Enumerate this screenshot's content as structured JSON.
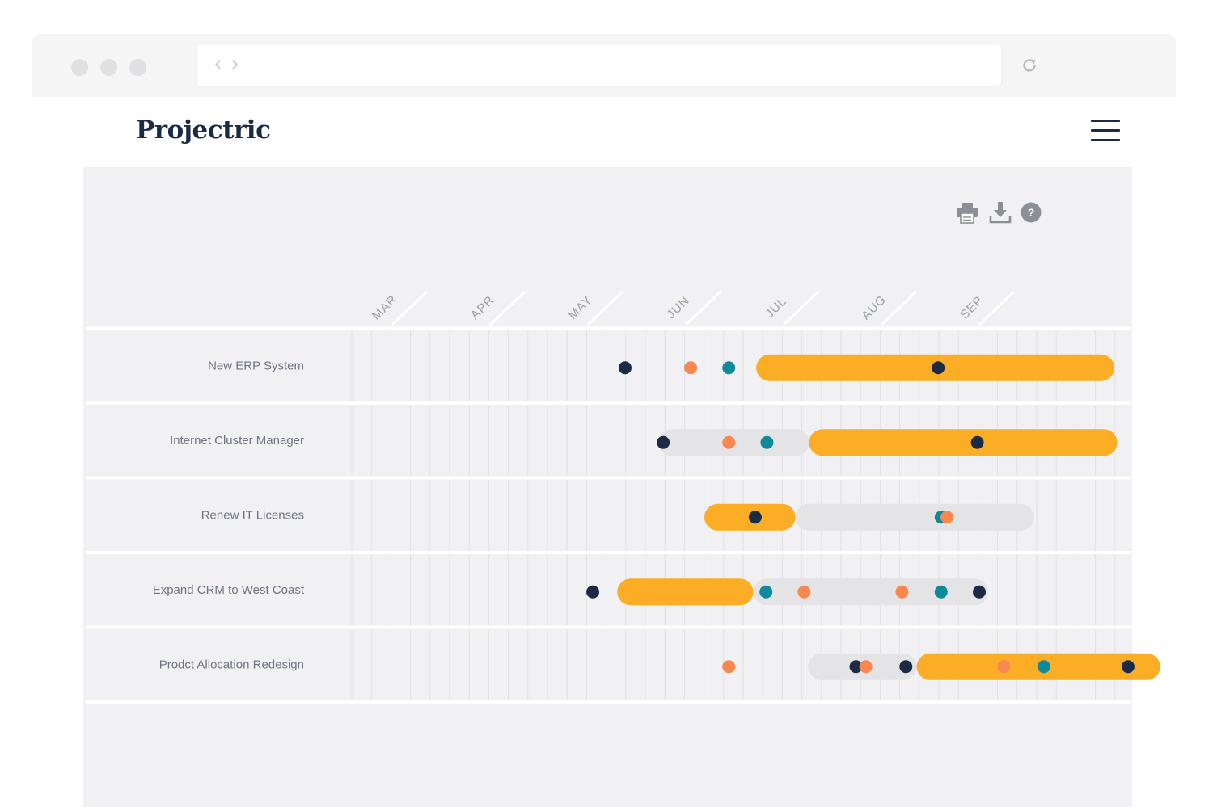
{
  "app": {
    "name": "Projectric"
  },
  "toolbar": {
    "icons": [
      "print-icon",
      "download-icon",
      "help-icon"
    ],
    "help_glyph": "?"
  },
  "colors": {
    "bar_active": "#fcad26",
    "bar_inactive": "#e4e4e6",
    "milestone_navy": "#1c2b45",
    "milestone_orange": "#f88850",
    "milestone_teal": "#0e8a9b",
    "panel_bg": "#f1f1f3"
  },
  "timeline": {
    "months": [
      "MAR",
      "APR",
      "MAY",
      "JUN",
      "JUL",
      "AUG",
      "SEP"
    ]
  },
  "projects": [
    {
      "name": "New ERP System",
      "bars": [
        {
          "start": 3.72,
          "end": 7.38,
          "status": "active"
        }
      ],
      "milestones": [
        {
          "at": 2.38,
          "color": "navy"
        },
        {
          "at": 3.05,
          "color": "orange"
        },
        {
          "at": 3.44,
          "color": "teal"
        },
        {
          "at": 5.58,
          "color": "navy"
        }
      ]
    },
    {
      "name": "Internet Cluster Manager",
      "bars": [
        {
          "start": 2.72,
          "end": 4.26,
          "status": "inactive"
        },
        {
          "start": 4.26,
          "end": 7.41,
          "status": "active"
        }
      ],
      "milestones": [
        {
          "at": 2.77,
          "color": "navy"
        },
        {
          "at": 3.44,
          "color": "orange"
        },
        {
          "at": 3.83,
          "color": "teal"
        },
        {
          "at": 5.98,
          "color": "navy"
        }
      ]
    },
    {
      "name": "Renew IT Licenses",
      "bars": [
        {
          "start": 3.19,
          "end": 4.12,
          "status": "active"
        },
        {
          "start": 4.12,
          "end": 6.56,
          "status": "inactive"
        }
      ],
      "milestones": [
        {
          "at": 3.71,
          "color": "navy"
        },
        {
          "at": 5.61,
          "color": "teal"
        },
        {
          "at": 5.67,
          "color": "orange"
        }
      ]
    },
    {
      "name": "Expand CRM to West Coast",
      "bars": [
        {
          "start": 2.3,
          "end": 3.69,
          "status": "active"
        },
        {
          "start": 3.69,
          "end": 6.09,
          "status": "inactive"
        }
      ],
      "milestones": [
        {
          "at": 2.05,
          "color": "navy"
        },
        {
          "at": 3.82,
          "color": "teal"
        },
        {
          "at": 4.21,
          "color": "orange"
        },
        {
          "at": 5.21,
          "color": "orange"
        },
        {
          "at": 5.61,
          "color": "teal"
        },
        {
          "at": 6.0,
          "color": "navy"
        }
      ]
    },
    {
      "name": "Prodct Allocation Redesign",
      "bars": [
        {
          "start": 4.25,
          "end": 5.36,
          "status": "inactive"
        },
        {
          "start": 5.36,
          "end": 7.85,
          "status": "active"
        }
      ],
      "milestones": [
        {
          "at": 3.44,
          "color": "orange"
        },
        {
          "at": 4.74,
          "color": "navy"
        },
        {
          "at": 4.84,
          "color": "orange"
        },
        {
          "at": 5.25,
          "color": "navy"
        },
        {
          "at": 6.25,
          "color": "orange"
        },
        {
          "at": 6.66,
          "color": "teal"
        },
        {
          "at": 7.52,
          "color": "navy"
        }
      ]
    }
  ]
}
